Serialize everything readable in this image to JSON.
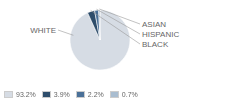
{
  "chart_data": {
    "type": "pie",
    "categories": [
      "WHITE",
      "BLACK",
      "HISPANIC",
      "ASIAN"
    ],
    "values": [
      93.2,
      3.9,
      2.2,
      0.7
    ],
    "value_labels": [
      "93.2%",
      "3.9%",
      "2.2%",
      "0.7%"
    ],
    "colors": [
      "#d6dce4",
      "#2e4d6b",
      "#4a7098",
      "#a9bdd0"
    ],
    "legend": "lower left"
  }
}
